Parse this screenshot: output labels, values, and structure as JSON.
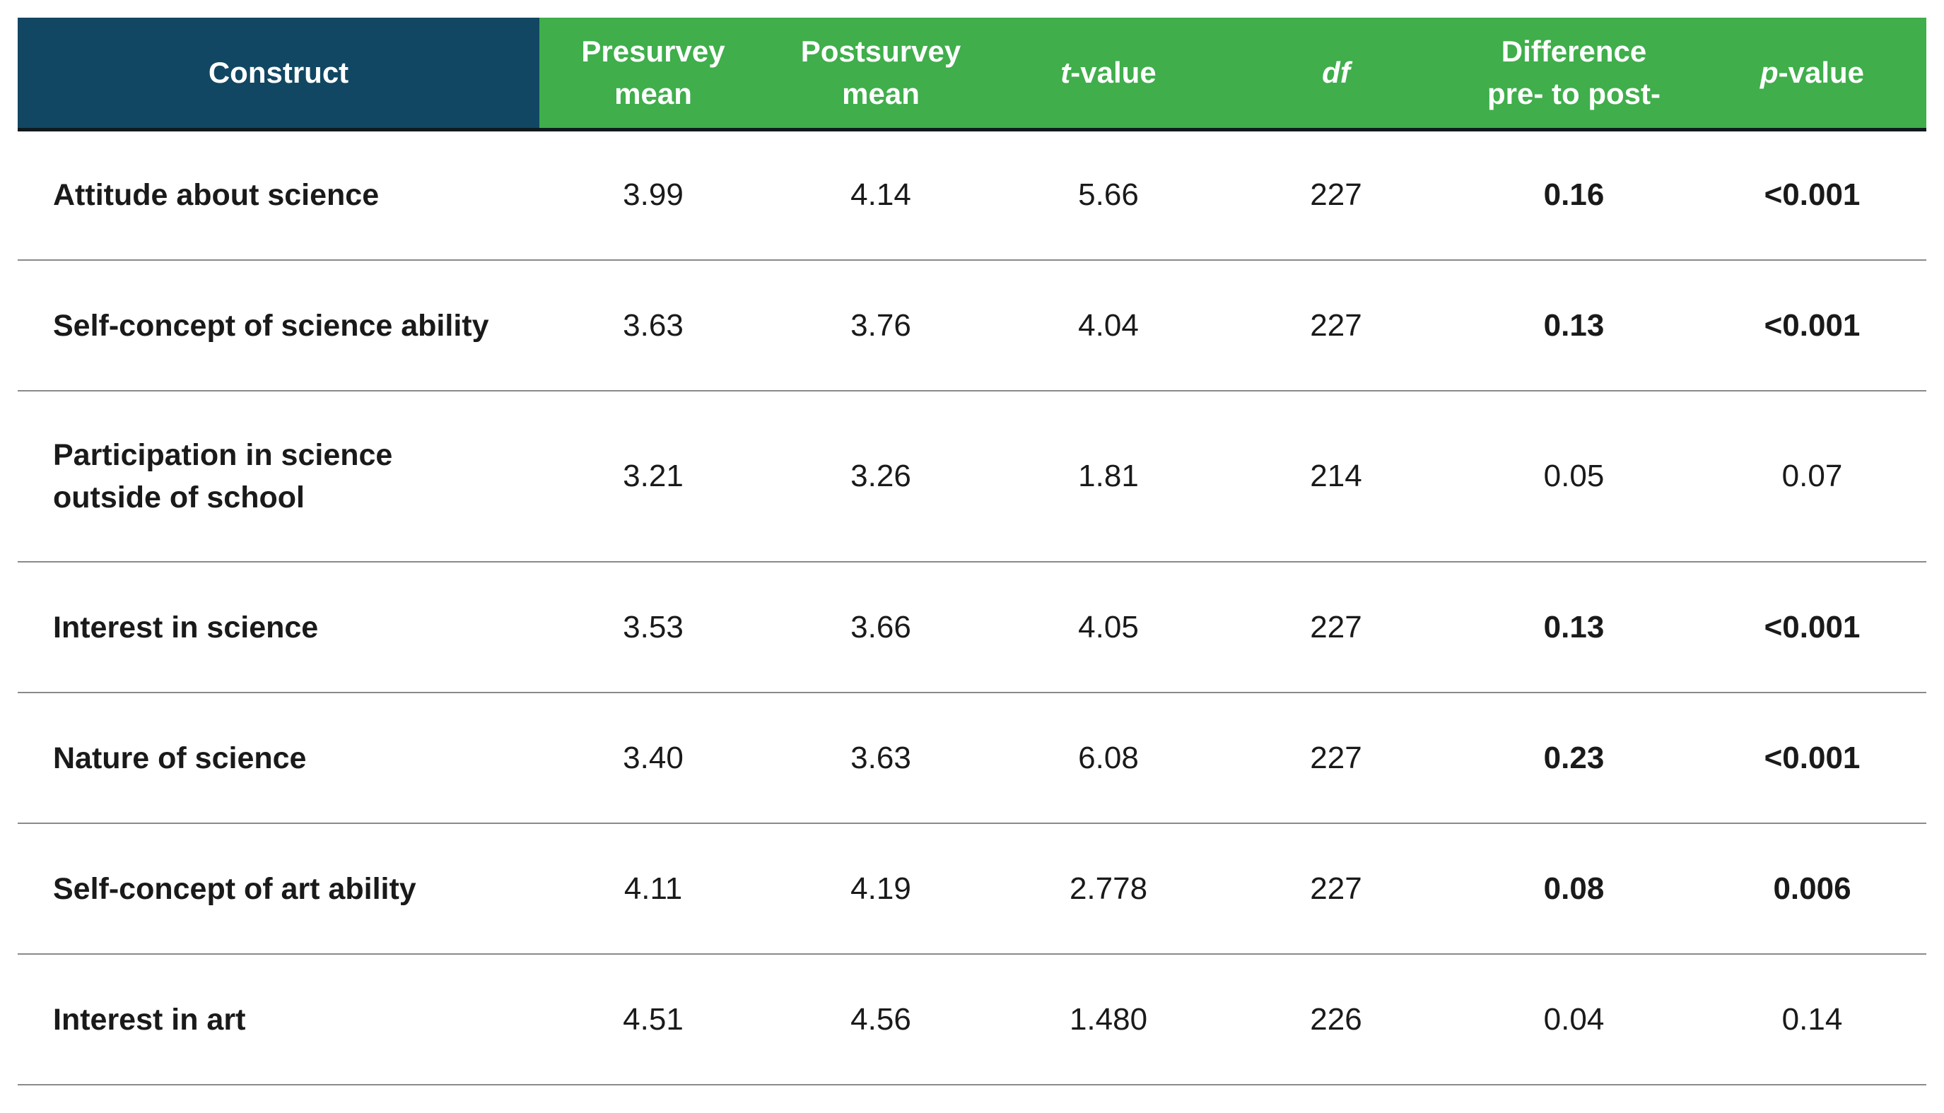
{
  "table": {
    "headers": {
      "construct": "Construct",
      "presurvey": [
        "Presurvey",
        "mean"
      ],
      "postsurvey": [
        "Postsurvey",
        "mean"
      ],
      "t_value": {
        "italic": "t",
        "rest": "-value"
      },
      "df": "df",
      "difference": [
        "Difference",
        "pre- to post-"
      ],
      "p_value": {
        "italic": "p",
        "rest": "-value"
      }
    },
    "colors": {
      "construct_header_bg": "#114762",
      "header_bg": "#3fae4b",
      "header_text": "#ffffff"
    },
    "rows": [
      {
        "construct": [
          "Attitude about science"
        ],
        "pre": "3.99",
        "post": "4.14",
        "t": "5.66",
        "df": "227",
        "diff": "0.16",
        "p": "<0.001",
        "significant": true
      },
      {
        "construct": [
          "Self-concept of science ability"
        ],
        "pre": "3.63",
        "post": "3.76",
        "t": "4.04",
        "df": "227",
        "diff": "0.13",
        "p": "<0.001",
        "significant": true
      },
      {
        "construct": [
          "Participation in science",
          "outside of school"
        ],
        "pre": "3.21",
        "post": "3.26",
        "t": "1.81",
        "df": "214",
        "diff": "0.05",
        "p": "0.07",
        "significant": false
      },
      {
        "construct": [
          "Interest in science"
        ],
        "pre": "3.53",
        "post": "3.66",
        "t": "4.05",
        "df": "227",
        "diff": "0.13",
        "p": "<0.001",
        "significant": true
      },
      {
        "construct": [
          "Nature of science"
        ],
        "pre": "3.40",
        "post": "3.63",
        "t": "6.08",
        "df": "227",
        "diff": "0.23",
        "p": "<0.001",
        "significant": true
      },
      {
        "construct": [
          "Self-concept of art ability"
        ],
        "pre": "4.11",
        "post": "4.19",
        "t": "2.778",
        "df": "227",
        "diff": "0.08",
        "p": "0.006",
        "significant": true
      },
      {
        "construct": [
          "Interest in art"
        ],
        "pre": "4.51",
        "post": "4.56",
        "t": "1.480",
        "df": "226",
        "diff": "0.04",
        "p": "0.14",
        "significant": false
      }
    ]
  }
}
